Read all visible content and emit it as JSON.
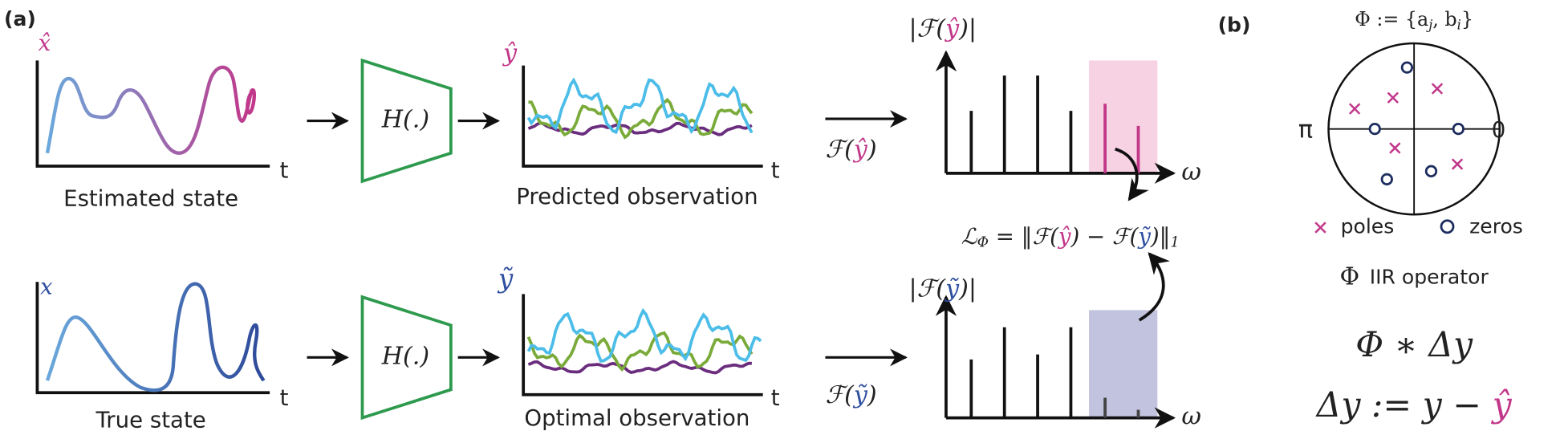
{
  "panel_a": {
    "label": "(a)",
    "estimated": {
      "symbol": "x̂",
      "axis": "t",
      "caption": "Estimated state"
    },
    "true": {
      "symbol": "x",
      "axis": "t",
      "caption": "True state"
    },
    "operator_top": "H(.)",
    "operator_bottom": "H(.)",
    "predicted": {
      "symbol": "ŷ",
      "axis": "t",
      "caption": "Predicted observation"
    },
    "optimal": {
      "symbol": "ỹ",
      "axis": "t",
      "caption": "Optimal observation"
    },
    "fourier_top": {
      "open": "ℱ(",
      "var": "ŷ",
      "close": ")"
    },
    "fourier_bottom": {
      "open": "ℱ(",
      "var": "ỹ",
      "close": ")"
    },
    "spectrum_top": {
      "open": "|ℱ(",
      "var": "ŷ",
      "close": ")|",
      "axis": "ω"
    },
    "spectrum_bottom": {
      "open": "|ℱ(",
      "var": "ỹ",
      "close": ")|",
      "axis": "ω"
    },
    "loss": {
      "lhs": "ℒ",
      "lhs_sub": "Φ",
      "eq": " = ‖ℱ(",
      "v1": "ŷ",
      "mid": ") − ℱ(",
      "v2": "ỹ",
      "end": ")‖",
      "end_sub": "1"
    }
  },
  "panel_b": {
    "label": "(b)",
    "params": [
      {
        "text": "Φ := {a",
        "sub": "j"
      },
      {
        "text": ", b",
        "sub": "i"
      },
      {
        "text": "}"
      }
    ],
    "pi": "π",
    "zero": "0",
    "poles": "poles",
    "zeros": "zeros",
    "operator_symbol": "Φ",
    "operator_name": "IIR operator",
    "convolution": "Φ ∗ Δy",
    "delta": {
      "text": "Δy := y − ",
      "var": "ŷ"
    }
  }
}
